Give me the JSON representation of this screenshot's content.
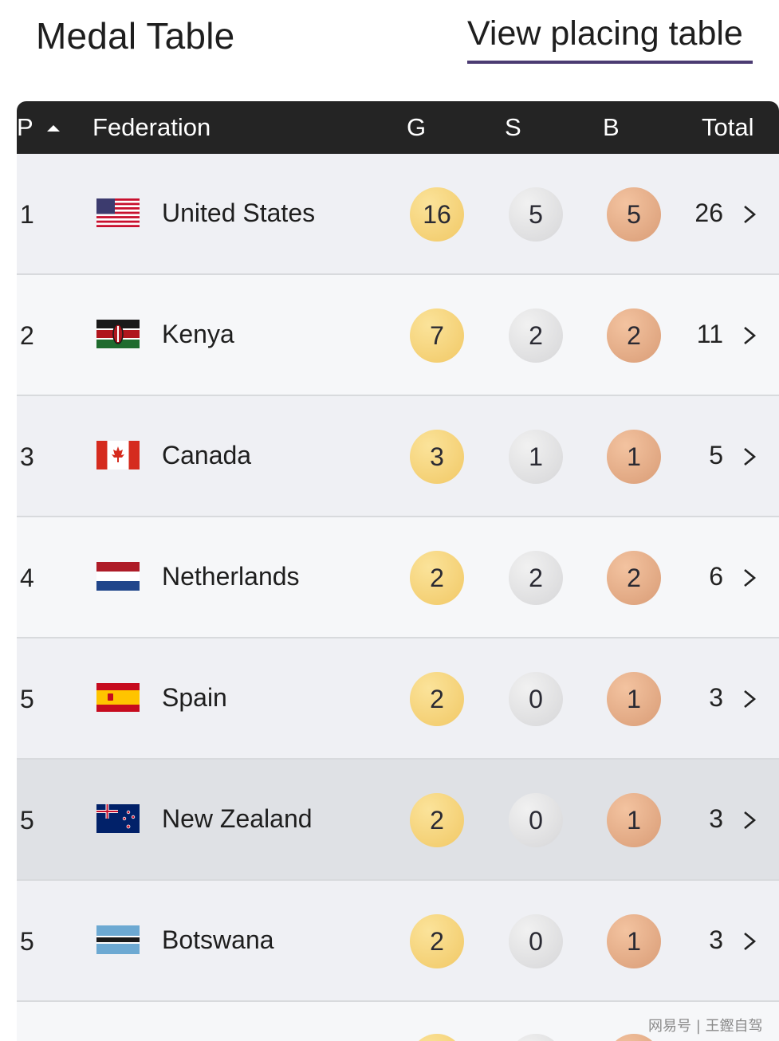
{
  "header": {
    "title": "Medal Table",
    "placing_link": "View placing table",
    "accent_color": "#4b3b72"
  },
  "table": {
    "columns": {
      "position": "P",
      "federation": "Federation",
      "gold": "G",
      "silver": "S",
      "bronze": "B",
      "total": "Total"
    },
    "sort": {
      "column": "position",
      "direction": "ascending",
      "icon": "sort-asc-icon"
    },
    "rows": [
      {
        "pos": "1",
        "country": "United States",
        "flag": "usa-flag",
        "g": "16",
        "s": "5",
        "b": "5",
        "total": "26"
      },
      {
        "pos": "2",
        "country": "Kenya",
        "flag": "kenya-flag",
        "g": "7",
        "s": "2",
        "b": "2",
        "total": "11"
      },
      {
        "pos": "3",
        "country": "Canada",
        "flag": "canada-flag",
        "g": "3",
        "s": "1",
        "b": "1",
        "total": "5"
      },
      {
        "pos": "4",
        "country": "Netherlands",
        "flag": "netherlands-flag",
        "g": "2",
        "s": "2",
        "b": "2",
        "total": "6"
      },
      {
        "pos": "5",
        "country": "Spain",
        "flag": "spain-flag",
        "g": "2",
        "s": "0",
        "b": "1",
        "total": "3"
      },
      {
        "pos": "5",
        "country": "New Zealand",
        "flag": "new-zealand-flag",
        "g": "2",
        "s": "0",
        "b": "1",
        "total": "3"
      },
      {
        "pos": "5",
        "country": "Botswana",
        "flag": "botswana-flag",
        "g": "2",
        "s": "0",
        "b": "1",
        "total": "3"
      }
    ],
    "highlighted_row": "New Zealand"
  },
  "colors": {
    "gold": "#f1c865",
    "silver": "#d6d6d8",
    "bronze": "#d99c76",
    "header_bg": "#242424"
  },
  "watermark": "网易号 | 王鏗自驾"
}
